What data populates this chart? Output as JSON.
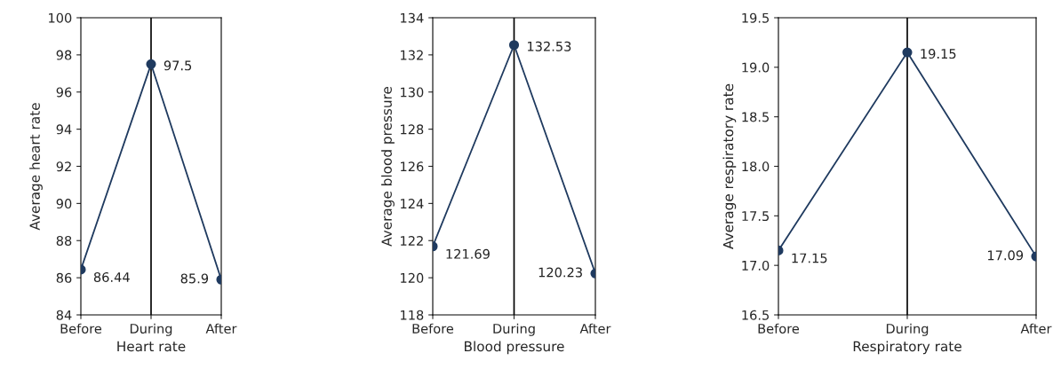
{
  "chart_data": [
    {
      "type": "line",
      "categories": [
        "Before",
        "During",
        "After"
      ],
      "xlabel": "Heart rate",
      "ylabel": "Average heart rate",
      "series": [
        {
          "color": "#1f3a5f",
          "values": [
            86.44,
            97.5,
            85.9
          ]
        }
      ],
      "ylim": [
        84,
        100
      ],
      "yticks": [
        84,
        86,
        88,
        90,
        92,
        94,
        96,
        98,
        100
      ],
      "data_labels": true,
      "marker": "circle",
      "grid": false,
      "ref_lines": [
        {
          "axis": "x",
          "value": "During",
          "color": "#000000"
        }
      ]
    },
    {
      "type": "line",
      "categories": [
        "Before",
        "During",
        "After"
      ],
      "xlabel": "Blood pressure",
      "ylabel": "Average blood pressure",
      "series": [
        {
          "color": "#1f3a5f",
          "values": [
            121.69,
            132.53,
            120.23
          ]
        }
      ],
      "ylim": [
        118,
        134
      ],
      "yticks": [
        118,
        120,
        122,
        124,
        126,
        128,
        130,
        132,
        134
      ],
      "data_labels": true,
      "marker": "circle",
      "grid": false,
      "ref_lines": [
        {
          "axis": "x",
          "value": "During",
          "color": "#000000"
        }
      ]
    },
    {
      "type": "line",
      "categories": [
        "Before",
        "During",
        "After"
      ],
      "xlabel": "Respiratory rate",
      "ylabel": "Average respiratory rate",
      "series": [
        {
          "color": "#1f3a5f",
          "values": [
            17.15,
            19.15,
            17.09
          ]
        }
      ],
      "ylim": [
        16.5,
        19.5
      ],
      "yticks": [
        {
          "value": 16.5,
          "label": "16.5"
        },
        {
          "value": 17.0,
          "label": "17.0"
        },
        {
          "value": 17.5,
          "label": "17.5"
        },
        {
          "value": 18.0,
          "label": "18.0"
        },
        {
          "value": 18.5,
          "label": "18.5"
        },
        {
          "value": 19.0,
          "label": "19.0"
        },
        {
          "value": 19.5,
          "label": "19.5"
        }
      ],
      "data_labels": true,
      "marker": "circle",
      "grid": false,
      "ref_lines": [
        {
          "axis": "x",
          "value": "During",
          "color": "#000000"
        }
      ]
    }
  ]
}
